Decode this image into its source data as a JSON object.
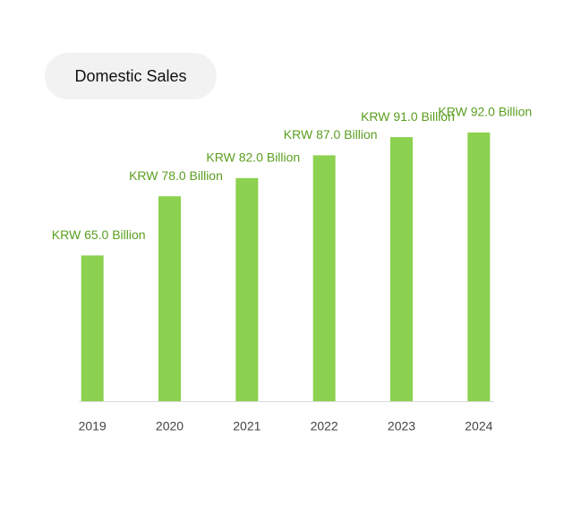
{
  "chart_data": {
    "type": "bar",
    "title": "Domestic Sales",
    "categories": [
      "2019",
      "2020",
      "2021",
      "2022",
      "2023",
      "2024"
    ],
    "values": [
      65.0,
      78.0,
      82.0,
      87.0,
      91.0,
      92.0
    ],
    "value_labels": [
      "KRW 65.0 Billion",
      "KRW 78.0 Billion",
      "KRW 82.0 Billion",
      "KRW 87.0 Billion",
      "KRW 91.0 Billion",
      "KRW 92.0 Billion"
    ],
    "color": "#8cd14f",
    "ylim": [
      33,
      92
    ]
  }
}
